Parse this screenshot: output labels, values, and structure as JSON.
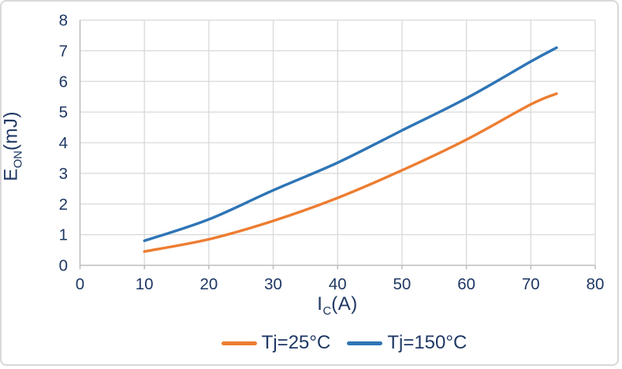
{
  "chart_data": {
    "type": "line",
    "x": [
      10,
      20,
      30,
      40,
      50,
      60,
      70,
      74
    ],
    "series": [
      {
        "name": "Tj=25°C",
        "color": "#ED7D31",
        "values": [
          0.45,
          0.85,
          1.45,
          2.2,
          3.1,
          4.1,
          5.25,
          5.6
        ]
      },
      {
        "name": "Tj=150°C",
        "color": "#2E75B6",
        "values": [
          0.8,
          1.5,
          2.45,
          3.35,
          4.4,
          5.45,
          6.65,
          7.1
        ]
      }
    ],
    "xlabel": {
      "main": "I",
      "sub": "C",
      "rest": "(A)"
    },
    "ylabel": {
      "main": "E",
      "sub": "ON",
      "rest": "(mJ)"
    },
    "xlim": [
      0,
      80
    ],
    "ylim": [
      0,
      8
    ],
    "xticks": [
      0,
      10,
      20,
      30,
      40,
      50,
      60,
      70,
      80
    ],
    "yticks": [
      0,
      1,
      2,
      3,
      4,
      5,
      6,
      7,
      8
    ],
    "grid": true,
    "legend_position": "bottom",
    "colors": {
      "grid": "#D9D9D9",
      "axis": "#BFBFBF",
      "text": "#1F3864",
      "background": "#FFFFFF",
      "card_border": "#D8D8D8"
    }
  }
}
